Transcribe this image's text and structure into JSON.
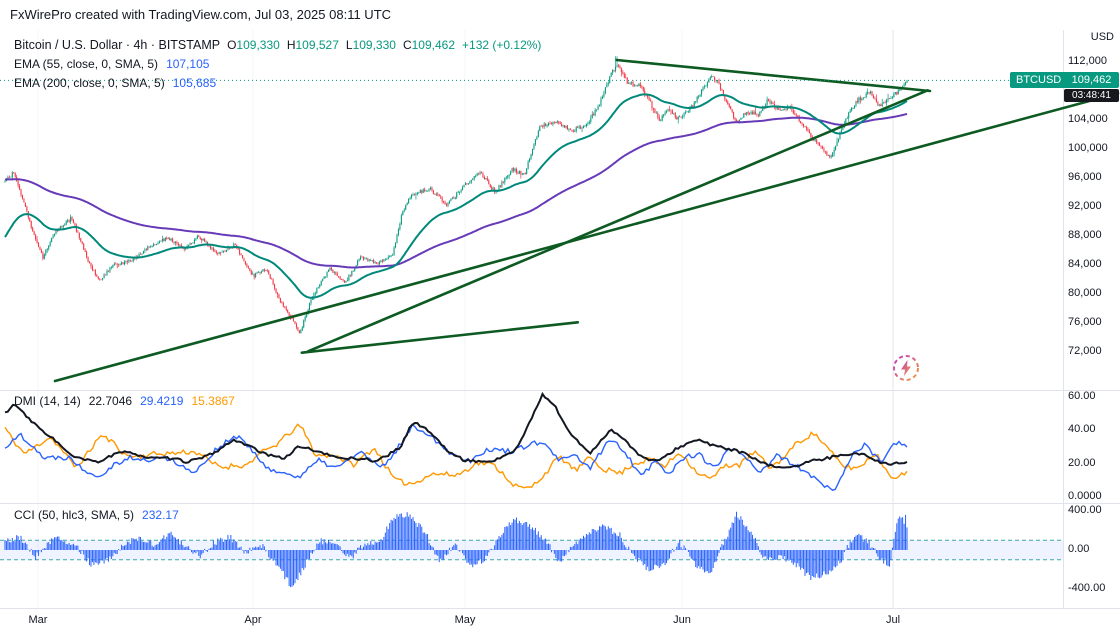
{
  "header": {
    "title": "FxWirePro created with TradingView.com, Jul 03, 2025 08:11 UTC"
  },
  "legend": {
    "symbol": "Bitcoin / U.S. Dollar · 4h · BITSTAMP",
    "ohlc": [
      {
        "k": "O",
        "v": "109,330"
      },
      {
        "k": "H",
        "v": "109,527"
      },
      {
        "k": "L",
        "v": "109,330"
      },
      {
        "k": "C",
        "v": "109,462"
      }
    ],
    "change": "+132 (+0.12%)",
    "ema55_label": "EMA (55, close, 0, SMA, 5)",
    "ema55_value": "107,105",
    "ema200_label": "EMA (200, close, 0, SMA, 5)",
    "ema200_value": "105,685"
  },
  "price_axis": {
    "currency": "USD",
    "symbol_badge": "BTCUSD",
    "last_price": "109,462",
    "countdown": "03:48:41",
    "ticks": [
      {
        "value": 112000,
        "label": "112,000"
      },
      {
        "value": 104000,
        "label": "104,000"
      },
      {
        "value": 100000,
        "label": "100,000"
      },
      {
        "value": 96000,
        "label": "96,000"
      },
      {
        "value": 92000,
        "label": "92,000"
      },
      {
        "value": 88000,
        "label": "88,000"
      },
      {
        "value": 84000,
        "label": "84,000"
      },
      {
        "value": 80000,
        "label": "80,000"
      },
      {
        "value": 76000,
        "label": "76,000"
      },
      {
        "value": 72000,
        "label": "72,000"
      }
    ]
  },
  "dmi_panel": {
    "label": "DMI (14, 14)",
    "adx_value": "22.7046",
    "plus_di_value": "29.4219",
    "minus_di_value": "15.3867",
    "ticks": [
      {
        "value": 60,
        "label": "60.00"
      },
      {
        "value": 40,
        "label": "40.00"
      },
      {
        "value": 20,
        "label": "20.00"
      },
      {
        "value": 0,
        "label": "0.0000"
      }
    ]
  },
  "cci_panel": {
    "label": "CCI (50, hlc3, SMA, 5)",
    "value": "232.17",
    "ticks": [
      {
        "value": 400,
        "label": "400.00"
      },
      {
        "value": 0,
        "label": "0.00"
      },
      {
        "value": -400,
        "label": "-400.00"
      }
    ]
  },
  "colors": {
    "up": "#089981",
    "down": "#F23645",
    "ema55": "#00897B",
    "ema200": "#673AB7",
    "trend": "#0D5A22",
    "adx": "#131722",
    "plus_di": "#2962FF",
    "minus_di": "#FF9800",
    "cci": "#2962FF",
    "band_fill": "rgba(41,98,255,0.08)",
    "band_line": "#3FA9A5",
    "grid": "#F2F4F7",
    "grid_strong": "#E2E6EC",
    "separator": "#E0E3EB",
    "axis_text": "#131722",
    "price_line": "#089981"
  },
  "chart_data": {
    "type": "candlestick",
    "title": "Bitcoin / U.S. Dollar",
    "interval": "4h",
    "exchange": "BITSTAMP",
    "last": {
      "open": 109330,
      "high": 109527,
      "low": 109330,
      "close": 109462,
      "change": 132,
      "change_pct": 0.12
    },
    "ema": [
      {
        "period": 55,
        "last": 107105
      },
      {
        "period": 200,
        "last": 105685
      }
    ],
    "visible_price_range": [
      67000,
      116500
    ],
    "months": [
      {
        "label": "Mar",
        "t": 0.0366
      },
      {
        "label": "Apr",
        "t": 0.2749
      },
      {
        "label": "May",
        "t": 0.51
      },
      {
        "label": "Jun",
        "t": 0.7506
      },
      {
        "label": "Jul",
        "t": 0.9845
      }
    ],
    "peak": {
      "t": 0.678,
      "high": 112800
    },
    "price_path_anchors": [
      [
        0,
        95500
      ],
      [
        0.01,
        96800
      ],
      [
        0.03,
        89000
      ],
      [
        0.042,
        85000
      ],
      [
        0.055,
        88500
      ],
      [
        0.074,
        90500
      ],
      [
        0.094,
        84000
      ],
      [
        0.105,
        81800
      ],
      [
        0.12,
        84000
      ],
      [
        0.14,
        84500
      ],
      [
        0.16,
        86500
      ],
      [
        0.18,
        87800
      ],
      [
        0.2,
        86200
      ],
      [
        0.215,
        88000
      ],
      [
        0.235,
        85500
      ],
      [
        0.255,
        86800
      ],
      [
        0.275,
        82500
      ],
      [
        0.29,
        83500
      ],
      [
        0.305,
        79000
      ],
      [
        0.319,
        76500
      ],
      [
        0.327,
        74600
      ],
      [
        0.34,
        79500
      ],
      [
        0.36,
        83500
      ],
      [
        0.377,
        81500
      ],
      [
        0.394,
        85000
      ],
      [
        0.414,
        84200
      ],
      [
        0.43,
        85500
      ],
      [
        0.44,
        91000
      ],
      [
        0.451,
        93800
      ],
      [
        0.471,
        94500
      ],
      [
        0.49,
        92300
      ],
      [
        0.51,
        95000
      ],
      [
        0.527,
        96800
      ],
      [
        0.543,
        94000
      ],
      [
        0.562,
        97200
      ],
      [
        0.576,
        96500
      ],
      [
        0.593,
        103200
      ],
      [
        0.61,
        103800
      ],
      [
        0.629,
        102500
      ],
      [
        0.646,
        103500
      ],
      [
        0.66,
        106500
      ],
      [
        0.673,
        110500
      ],
      [
        0.678,
        111800
      ],
      [
        0.691,
        109000
      ],
      [
        0.704,
        108800
      ],
      [
        0.717,
        106000
      ],
      [
        0.726,
        104000
      ],
      [
        0.735,
        105500
      ],
      [
        0.746,
        104200
      ],
      [
        0.757,
        105000
      ],
      [
        0.77,
        107500
      ],
      [
        0.782,
        110000
      ],
      [
        0.79,
        109300
      ],
      [
        0.801,
        106000
      ],
      [
        0.811,
        103800
      ],
      [
        0.824,
        105200
      ],
      [
        0.835,
        104800
      ],
      [
        0.846,
        106800
      ],
      [
        0.857,
        105500
      ],
      [
        0.87,
        105800
      ],
      [
        0.881,
        104000
      ],
      [
        0.895,
        101500
      ],
      [
        0.906,
        100200
      ],
      [
        0.915,
        98600
      ],
      [
        0.926,
        102000
      ],
      [
        0.937,
        105500
      ],
      [
        0.948,
        107000
      ],
      [
        0.959,
        107800
      ],
      [
        0.97,
        105800
      ],
      [
        0.981,
        107200
      ],
      [
        0.99,
        107800
      ],
      [
        1,
        109462
      ]
    ],
    "trendlines": [
      {
        "name": "rising-support-long",
        "t1": 0.0554,
        "p1": 68000,
        "t2": 1.234,
        "p2": 107700
      },
      {
        "name": "rising-support-steep",
        "t1": 0.336,
        "p1": 72100,
        "t2": 1.023,
        "p2": 108100
      },
      {
        "name": "rising-support-short",
        "t1": 0.329,
        "p1": 71900,
        "t2": 0.635,
        "p2": 76100
      },
      {
        "name": "descending-resistance",
        "t1": 0.678,
        "p1": 112280,
        "t2": 1.0255,
        "p2": 108000
      }
    ],
    "dmi": {
      "period": 14,
      "smoothing": 14,
      "range": [
        0,
        60
      ],
      "last": {
        "adx": 22.7046,
        "plus_di": 29.4219,
        "minus_di": 15.3867
      },
      "adx_anchors": [
        [
          0,
          52
        ],
        [
          0.011,
          58
        ],
        [
          0.039,
          40
        ],
        [
          0.072,
          25
        ],
        [
          0.105,
          20
        ],
        [
          0.139,
          28
        ],
        [
          0.172,
          24
        ],
        [
          0.2,
          21
        ],
        [
          0.227,
          26
        ],
        [
          0.255,
          32
        ],
        [
          0.277,
          28
        ],
        [
          0.31,
          24
        ],
        [
          0.327,
          30
        ],
        [
          0.36,
          27
        ],
        [
          0.388,
          22
        ],
        [
          0.41,
          20
        ],
        [
          0.438,
          30
        ],
        [
          0.452,
          44
        ],
        [
          0.466,
          40
        ],
        [
          0.488,
          30
        ],
        [
          0.51,
          24
        ],
        [
          0.538,
          20
        ],
        [
          0.565,
          28
        ],
        [
          0.582,
          45
        ],
        [
          0.596,
          60
        ],
        [
          0.61,
          52
        ],
        [
          0.626,
          38
        ],
        [
          0.649,
          28
        ],
        [
          0.671,
          40
        ],
        [
          0.684,
          36
        ],
        [
          0.704,
          26
        ],
        [
          0.726,
          22
        ],
        [
          0.748,
          28
        ],
        [
          0.77,
          34
        ],
        [
          0.793,
          30
        ],
        [
          0.815,
          26
        ],
        [
          0.837,
          22
        ],
        [
          0.859,
          20
        ],
        [
          0.881,
          18
        ],
        [
          0.903,
          22
        ],
        [
          0.926,
          26
        ],
        [
          0.948,
          24
        ],
        [
          0.97,
          20
        ],
        [
          1,
          22.7
        ]
      ],
      "plus_di_anchors": [
        [
          0,
          30
        ],
        [
          0.017,
          38
        ],
        [
          0.044,
          20
        ],
        [
          0.072,
          28
        ],
        [
          0.105,
          12
        ],
        [
          0.139,
          25
        ],
        [
          0.172,
          20
        ],
        [
          0.205,
          15
        ],
        [
          0.233,
          30
        ],
        [
          0.261,
          36
        ],
        [
          0.283,
          25
        ],
        [
          0.31,
          12
        ],
        [
          0.327,
          8
        ],
        [
          0.349,
          22
        ],
        [
          0.371,
          18
        ],
        [
          0.394,
          25
        ],
        [
          0.416,
          20
        ],
        [
          0.438,
          35
        ],
        [
          0.452,
          42
        ],
        [
          0.471,
          35
        ],
        [
          0.493,
          28
        ],
        [
          0.516,
          20
        ],
        [
          0.538,
          25
        ],
        [
          0.56,
          30
        ],
        [
          0.582,
          35
        ],
        [
          0.599,
          30
        ],
        [
          0.615,
          22
        ],
        [
          0.632,
          28
        ],
        [
          0.649,
          18
        ],
        [
          0.671,
          30
        ],
        [
          0.687,
          25
        ],
        [
          0.704,
          15
        ],
        [
          0.721,
          22
        ],
        [
          0.737,
          12
        ],
        [
          0.754,
          25
        ],
        [
          0.77,
          30
        ],
        [
          0.787,
          20
        ],
        [
          0.804,
          28
        ],
        [
          0.82,
          22
        ],
        [
          0.837,
          15
        ],
        [
          0.854,
          25
        ],
        [
          0.87,
          18
        ],
        [
          0.887,
          12
        ],
        [
          0.903,
          10
        ],
        [
          0.92,
          8
        ],
        [
          0.937,
          25
        ],
        [
          0.953,
          30
        ],
        [
          0.97,
          22
        ],
        [
          0.987,
          35
        ],
        [
          1,
          29.42
        ]
      ],
      "minus_di_anchors": [
        [
          0,
          42
        ],
        [
          0.022,
          30
        ],
        [
          0.05,
          35
        ],
        [
          0.078,
          20
        ],
        [
          0.105,
          35
        ],
        [
          0.133,
          22
        ],
        [
          0.161,
          28
        ],
        [
          0.188,
          25
        ],
        [
          0.216,
          30
        ],
        [
          0.244,
          18
        ],
        [
          0.266,
          15
        ],
        [
          0.288,
          28
        ],
        [
          0.31,
          35
        ],
        [
          0.327,
          40
        ],
        [
          0.344,
          25
        ],
        [
          0.366,
          30
        ],
        [
          0.388,
          20
        ],
        [
          0.41,
          28
        ],
        [
          0.432,
          12
        ],
        [
          0.455,
          6
        ],
        [
          0.477,
          10
        ],
        [
          0.499,
          15
        ],
        [
          0.521,
          22
        ],
        [
          0.543,
          18
        ],
        [
          0.565,
          10
        ],
        [
          0.582,
          8
        ],
        [
          0.599,
          12
        ],
        [
          0.615,
          20
        ],
        [
          0.632,
          15
        ],
        [
          0.649,
          25
        ],
        [
          0.665,
          15
        ],
        [
          0.682,
          12
        ],
        [
          0.698,
          22
        ],
        [
          0.715,
          28
        ],
        [
          0.732,
          20
        ],
        [
          0.748,
          25
        ],
        [
          0.765,
          15
        ],
        [
          0.782,
          12
        ],
        [
          0.798,
          18
        ],
        [
          0.815,
          15
        ],
        [
          0.832,
          25
        ],
        [
          0.848,
          20
        ],
        [
          0.865,
          28
        ],
        [
          0.876,
          32
        ],
        [
          0.898,
          38
        ],
        [
          0.915,
          30
        ],
        [
          0.931,
          20
        ],
        [
          0.948,
          15
        ],
        [
          0.965,
          22
        ],
        [
          0.981,
          12
        ],
        [
          1,
          15.39
        ]
      ]
    },
    "cci": {
      "period": 50,
      "source": "hlc3",
      "range": [
        -400,
        400
      ],
      "band": [
        -100,
        100
      ],
      "last": 232.17,
      "anchors": [
        [
          0,
          80
        ],
        [
          0.017,
          140
        ],
        [
          0.033,
          -80
        ],
        [
          0.055,
          120
        ],
        [
          0.078,
          60
        ],
        [
          0.094,
          -140
        ],
        [
          0.116,
          -100
        ],
        [
          0.133,
          80
        ],
        [
          0.15,
          120
        ],
        [
          0.166,
          60
        ],
        [
          0.183,
          180
        ],
        [
          0.2,
          40
        ],
        [
          0.216,
          -60
        ],
        [
          0.233,
          80
        ],
        [
          0.249,
          140
        ],
        [
          0.266,
          -40
        ],
        [
          0.283,
          60
        ],
        [
          0.299,
          -120
        ],
        [
          0.319,
          -390
        ],
        [
          0.333,
          -150
        ],
        [
          0.349,
          100
        ],
        [
          0.366,
          50
        ],
        [
          0.383,
          -80
        ],
        [
          0.399,
          60
        ],
        [
          0.416,
          100
        ],
        [
          0.435,
          380
        ],
        [
          0.449,
          350
        ],
        [
          0.466,
          180
        ],
        [
          0.482,
          -130
        ],
        [
          0.499,
          80
        ],
        [
          0.516,
          -180
        ],
        [
          0.532,
          -100
        ],
        [
          0.549,
          150
        ],
        [
          0.565,
          320
        ],
        [
          0.582,
          250
        ],
        [
          0.599,
          100
        ],
        [
          0.615,
          -120
        ],
        [
          0.632,
          60
        ],
        [
          0.649,
          180
        ],
        [
          0.665,
          250
        ],
        [
          0.682,
          150
        ],
        [
          0.698,
          -80
        ],
        [
          0.715,
          -200
        ],
        [
          0.732,
          -120
        ],
        [
          0.748,
          80
        ],
        [
          0.765,
          -150
        ],
        [
          0.782,
          -250
        ],
        [
          0.798,
          100
        ],
        [
          0.811,
          370
        ],
        [
          0.826,
          200
        ],
        [
          0.843,
          -100
        ],
        [
          0.859,
          -60
        ],
        [
          0.876,
          -150
        ],
        [
          0.895,
          -290
        ],
        [
          0.909,
          -250
        ],
        [
          0.926,
          -120
        ],
        [
          0.942,
          160
        ],
        [
          0.957,
          80
        ],
        [
          0.97,
          -80
        ],
        [
          0.981,
          -160
        ],
        [
          0.991,
          380
        ],
        [
          1,
          232.17
        ]
      ]
    }
  }
}
